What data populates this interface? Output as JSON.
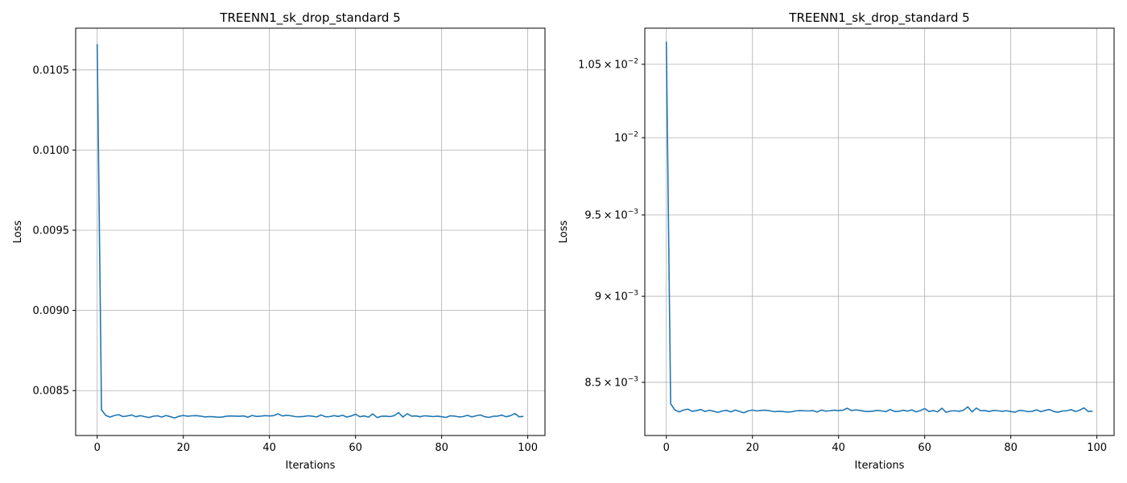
{
  "chart_data": [
    {
      "type": "line",
      "title": "TREENN1_sk_drop_standard 5",
      "xlabel": "Iterations",
      "ylabel": "Loss",
      "yscale": "linear",
      "grid": true,
      "xlim": [
        -5,
        104
      ],
      "ylim": [
        0.00822,
        0.01076
      ],
      "xticks": [
        0,
        20,
        40,
        60,
        80,
        100
      ],
      "xtick_labels": [
        "0",
        "20",
        "40",
        "60",
        "80",
        "100"
      ],
      "yticks": [
        0.0085,
        0.009,
        0.0095,
        0.01,
        0.0105
      ],
      "ytick_labels": [
        "0.0085",
        "0.0090",
        "0.0095",
        "0.0100",
        "0.0105"
      ],
      "series": [
        {
          "color": "#1f77b4",
          "x": [
            0,
            1,
            2,
            3,
            4,
            5,
            6,
            7,
            8,
            9,
            10,
            11,
            12,
            13,
            14,
            15,
            16,
            17,
            18,
            19,
            20,
            21,
            22,
            23,
            24,
            25,
            26,
            27,
            28,
            29,
            30,
            31,
            32,
            33,
            34,
            35,
            36,
            37,
            38,
            39,
            40,
            41,
            42,
            43,
            44,
            45,
            46,
            47,
            48,
            49,
            50,
            51,
            52,
            53,
            54,
            55,
            56,
            57,
            58,
            59,
            60,
            61,
            62,
            63,
            64,
            65,
            66,
            67,
            68,
            69,
            70,
            71,
            72,
            73,
            74,
            75,
            76,
            77,
            78,
            79,
            80,
            81,
            82,
            83,
            84,
            85,
            86,
            87,
            88,
            89,
            90,
            91,
            92,
            93,
            94,
            95,
            96,
            97,
            98,
            99
          ],
          "y": [
            0.01066,
            0.00838,
            0.008345,
            0.008335,
            0.008345,
            0.00835,
            0.008338,
            0.008342,
            0.008348,
            0.008337,
            0.008344,
            0.008338,
            0.008332,
            0.00834,
            0.008343,
            0.008335,
            0.008345,
            0.008337,
            0.00833,
            0.00834,
            0.008345,
            0.00834,
            0.008343,
            0.008344,
            0.008341,
            0.008336,
            0.008338,
            0.008337,
            0.008334,
            0.008335,
            0.00834,
            0.008342,
            0.008341,
            0.00834,
            0.008342,
            0.008334,
            0.008345,
            0.008339,
            0.008341,
            0.008344,
            0.008342,
            0.008344,
            0.008355,
            0.008342,
            0.008346,
            0.008343,
            0.008338,
            0.008337,
            0.008339,
            0.008343,
            0.00834,
            0.008336,
            0.008348,
            0.008337,
            0.008338,
            0.008344,
            0.008339,
            0.008346,
            0.008335,
            0.008342,
            0.008353,
            0.008337,
            0.008342,
            0.008335,
            0.008355,
            0.008332,
            0.00834,
            0.008341,
            0.008338,
            0.008344,
            0.008363,
            0.008335,
            0.008356,
            0.008341,
            0.008342,
            0.008337,
            0.008343,
            0.008341,
            0.008338,
            0.008341,
            0.008337,
            0.008333,
            0.008343,
            0.008341,
            0.008336,
            0.008338,
            0.008346,
            0.008336,
            0.008343,
            0.008348,
            0.008337,
            0.008333,
            0.00834,
            0.008341,
            0.008347,
            0.008337,
            0.008344,
            0.008357,
            0.008337,
            0.008339
          ]
        }
      ]
    },
    {
      "type": "line",
      "title": "TREENN1_sk_drop_standard 5",
      "xlabel": "Iterations",
      "ylabel": "Loss",
      "yscale": "log",
      "grid": true,
      "xlim": [
        -5,
        104
      ],
      "ylim": [
        0.008205,
        0.010755
      ],
      "xticks": [
        0,
        20,
        40,
        60,
        80,
        100
      ],
      "xtick_labels": [
        "0",
        "20",
        "40",
        "60",
        "80",
        "100"
      ],
      "yticks": [
        0.0085,
        0.009,
        0.0095,
        0.01,
        0.0105
      ],
      "ytick_labels": [
        {
          "mantissa": "8.5",
          "base": "10",
          "exp": "−3"
        },
        {
          "mantissa": "9",
          "base": "10",
          "exp": "−3"
        },
        {
          "mantissa": "9.5",
          "base": "10",
          "exp": "−3"
        },
        {
          "mantissa": "",
          "base": "10",
          "exp": "−2"
        },
        {
          "mantissa": "1.05",
          "base": "10",
          "exp": "−2"
        }
      ],
      "series": [
        {
          "color": "#1f77b4",
          "x": [
            0,
            1,
            2,
            3,
            4,
            5,
            6,
            7,
            8,
            9,
            10,
            11,
            12,
            13,
            14,
            15,
            16,
            17,
            18,
            19,
            20,
            21,
            22,
            23,
            24,
            25,
            26,
            27,
            28,
            29,
            30,
            31,
            32,
            33,
            34,
            35,
            36,
            37,
            38,
            39,
            40,
            41,
            42,
            43,
            44,
            45,
            46,
            47,
            48,
            49,
            50,
            51,
            52,
            53,
            54,
            55,
            56,
            57,
            58,
            59,
            60,
            61,
            62,
            63,
            64,
            65,
            66,
            67,
            68,
            69,
            70,
            71,
            72,
            73,
            74,
            75,
            76,
            77,
            78,
            79,
            80,
            81,
            82,
            83,
            84,
            85,
            86,
            87,
            88,
            89,
            90,
            91,
            92,
            93,
            94,
            95,
            96,
            97,
            98,
            99
          ],
          "y": [
            0.01066,
            0.00838,
            0.008345,
            0.008335,
            0.008345,
            0.00835,
            0.008338,
            0.008342,
            0.008348,
            0.008337,
            0.008344,
            0.008338,
            0.008332,
            0.00834,
            0.008343,
            0.008335,
            0.008345,
            0.008337,
            0.00833,
            0.00834,
            0.008345,
            0.00834,
            0.008343,
            0.008344,
            0.008341,
            0.008336,
            0.008338,
            0.008337,
            0.008334,
            0.008335,
            0.00834,
            0.008342,
            0.008341,
            0.00834,
            0.008342,
            0.008334,
            0.008345,
            0.008339,
            0.008341,
            0.008344,
            0.008342,
            0.008344,
            0.008355,
            0.008342,
            0.008346,
            0.008343,
            0.008338,
            0.008337,
            0.008339,
            0.008343,
            0.00834,
            0.008336,
            0.008348,
            0.008337,
            0.008338,
            0.008344,
            0.008339,
            0.008346,
            0.008335,
            0.008342,
            0.008353,
            0.008337,
            0.008342,
            0.008335,
            0.008355,
            0.008332,
            0.00834,
            0.008341,
            0.008338,
            0.008344,
            0.008363,
            0.008335,
            0.008356,
            0.008341,
            0.008342,
            0.008337,
            0.008343,
            0.008341,
            0.008338,
            0.008341,
            0.008337,
            0.008333,
            0.008343,
            0.008341,
            0.008336,
            0.008338,
            0.008346,
            0.008336,
            0.008343,
            0.008348,
            0.008337,
            0.008333,
            0.00834,
            0.008341,
            0.008347,
            0.008337,
            0.008344,
            0.008357,
            0.008337,
            0.008339
          ]
        }
      ]
    }
  ]
}
